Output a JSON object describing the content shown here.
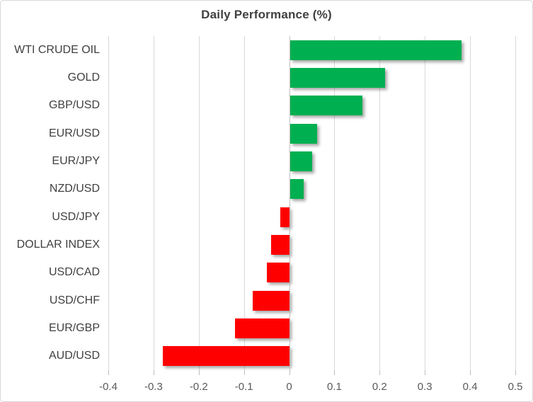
{
  "chart_data": {
    "type": "bar",
    "orientation": "horizontal",
    "title": "Daily Performance (%)",
    "categories": [
      "WTI CRUDE OIL",
      "GOLD",
      "GBP/USD",
      "EUR/USD",
      "EUR/JPY",
      "NZD/USD",
      "USD/JPY",
      "DOLLAR INDEX",
      "USD/CAD",
      "USD/CHF",
      "EUR/GBP",
      "AUD/USD"
    ],
    "values": [
      0.38,
      0.21,
      0.16,
      0.06,
      0.05,
      0.03,
      -0.02,
      -0.04,
      -0.05,
      -0.08,
      -0.12,
      -0.28
    ],
    "xlabel": "",
    "ylabel": "",
    "xlim": [
      -0.4,
      0.5
    ],
    "xticks": [
      -0.4,
      -0.3,
      -0.2,
      -0.1,
      0,
      0.1,
      0.2,
      0.3,
      0.4,
      0.5
    ],
    "xtick_labels": [
      "-0.4",
      "-0.3",
      "-0.2",
      "-0.1",
      "0",
      "0.1",
      "0.2",
      "0.3",
      "0.4",
      "0.5"
    ],
    "grid": true,
    "legend": false,
    "colors": {
      "positive": "#00B050",
      "negative": "#FF0000",
      "gridline": "#D9D9D9",
      "axis_line": "#BFBFBF",
      "title_text": "#404040",
      "category_text": "#404040",
      "tick_text": "#595959",
      "chart_border": "#D7D7D7",
      "background": "#FFFFFF"
    }
  }
}
